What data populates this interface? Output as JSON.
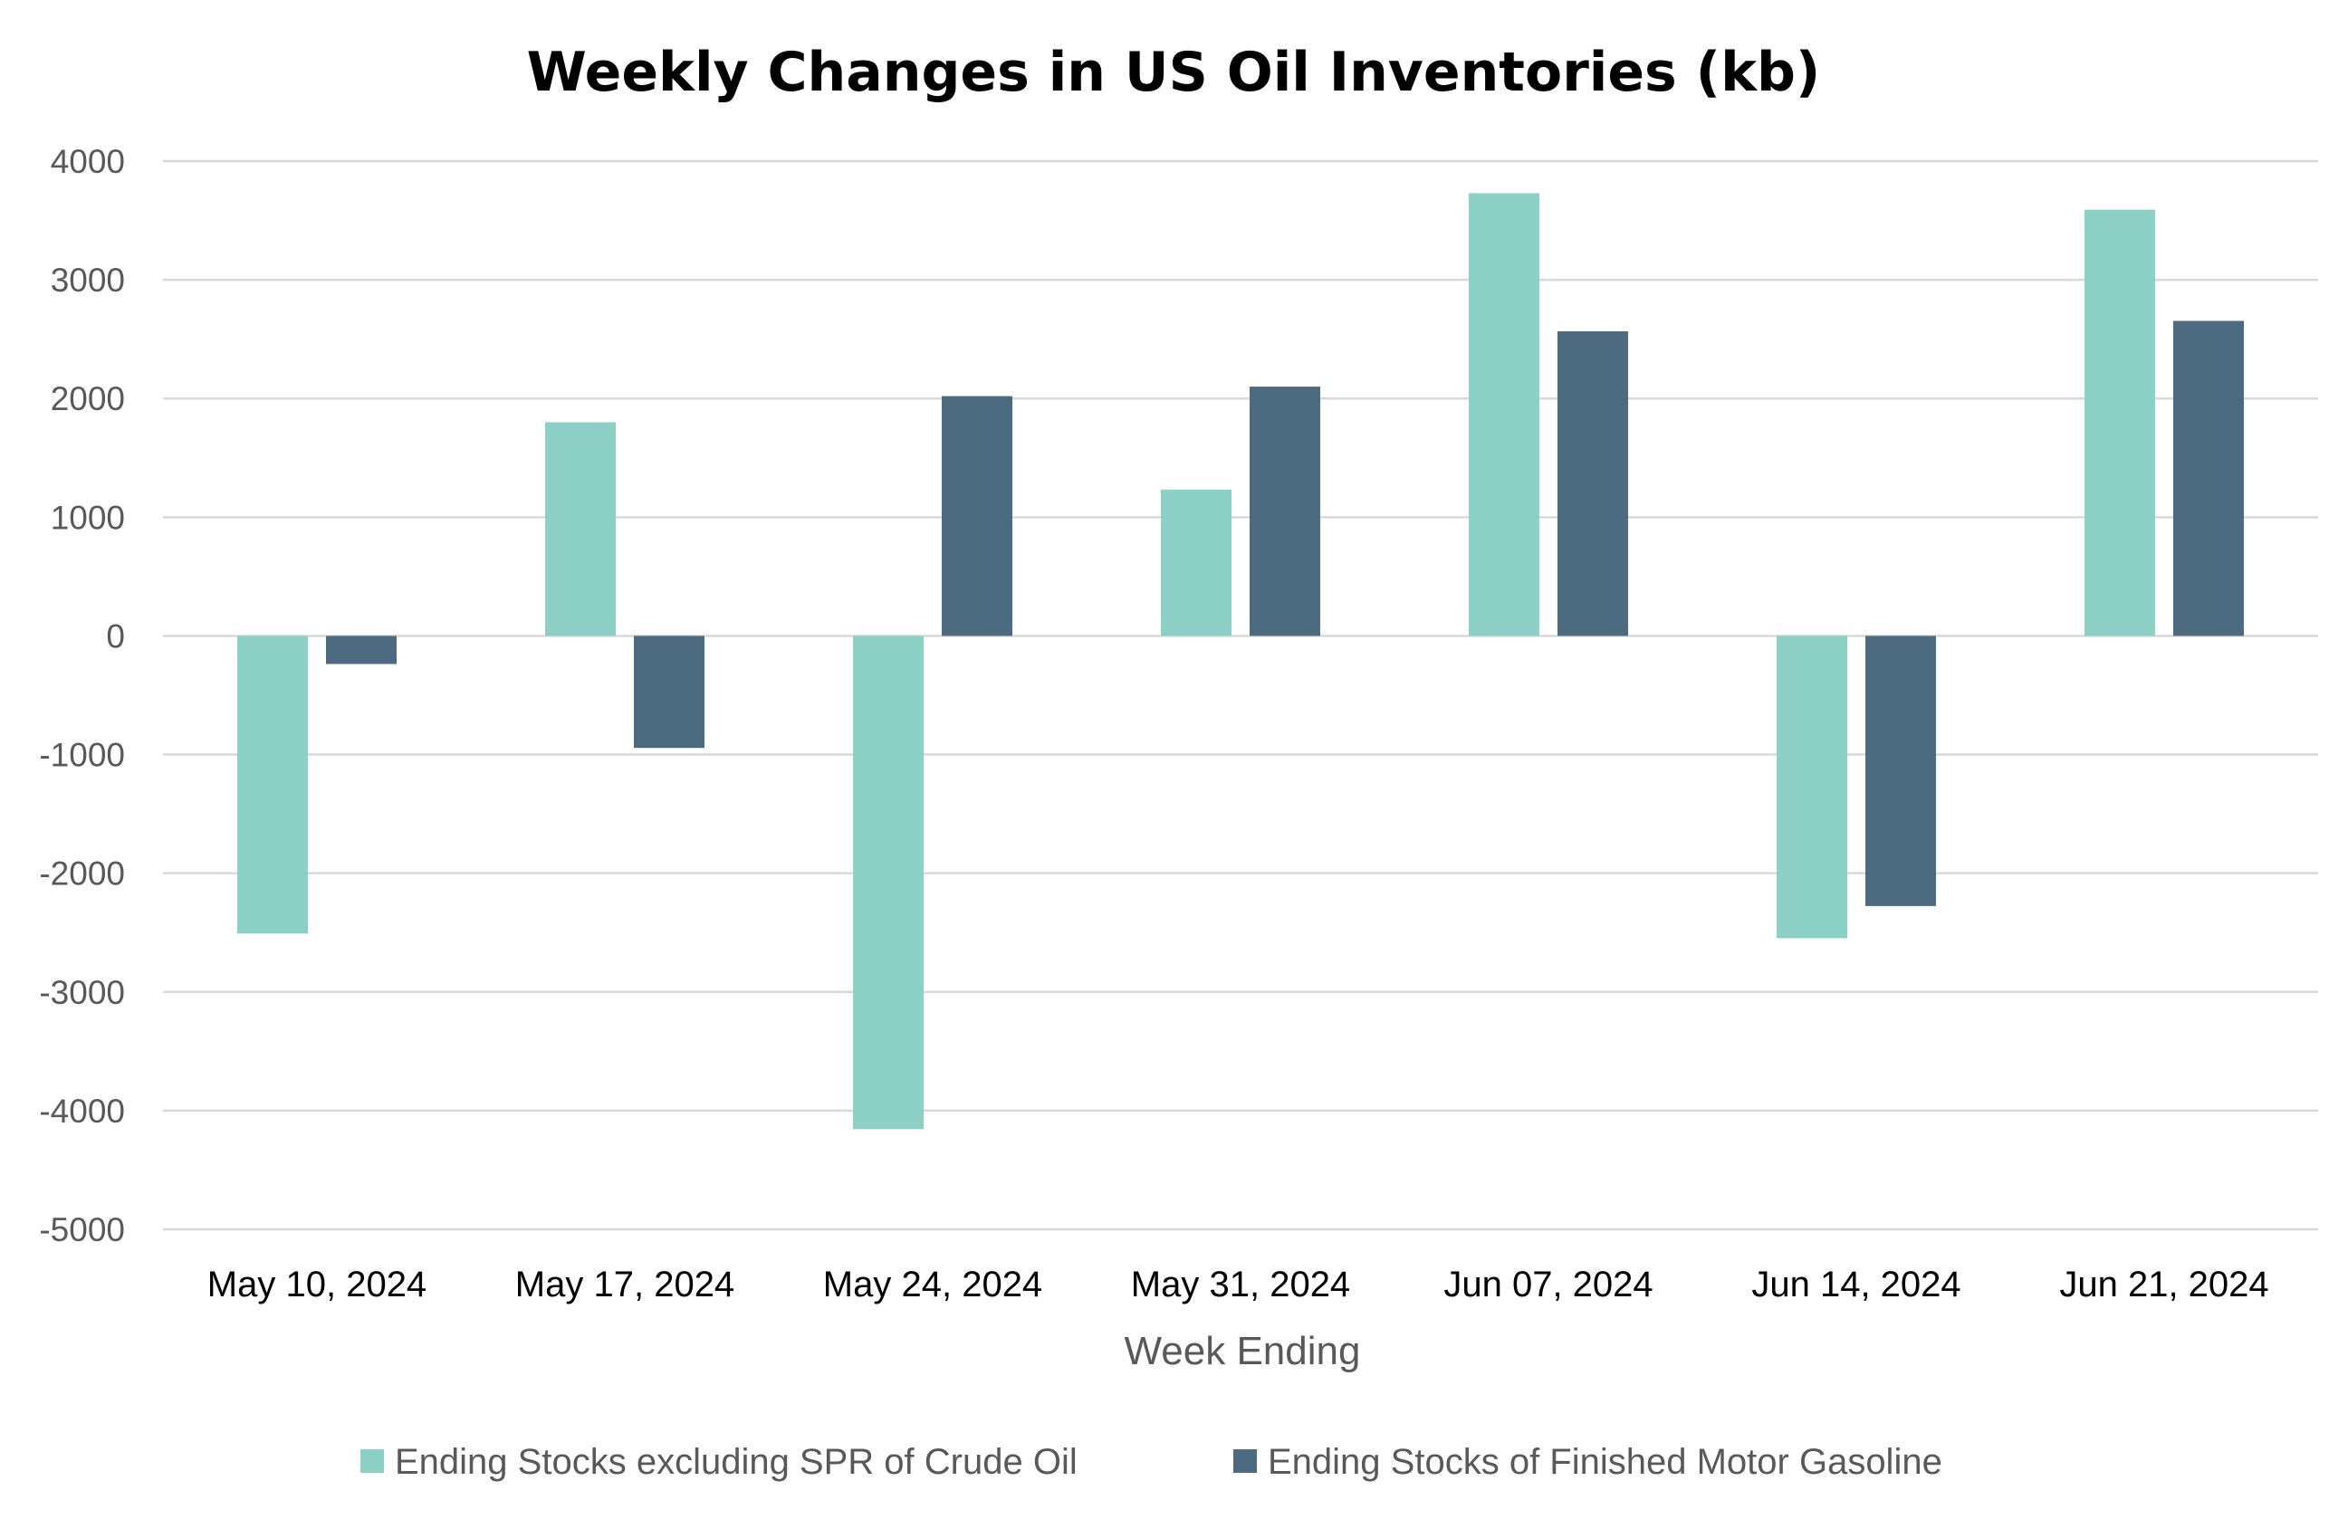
{
  "chart_data": {
    "type": "bar",
    "title": "Weekly Changes in US Oil Inventories (kb)",
    "xlabel": "Week Ending",
    "ylabel": "",
    "categories": [
      "May 10, 2024",
      "May 17, 2024",
      "May 24, 2024",
      "May 31, 2024",
      "Jun 07, 2024",
      "Jun 14, 2024",
      "Jun 21, 2024"
    ],
    "series": [
      {
        "name": "Ending Stocks excluding SPR of Crude Oil",
        "color": "#8dd0c6",
        "values": [
          -2508,
          1800,
          -4156,
          1233,
          3730,
          -2547,
          3591
        ]
      },
      {
        "name": "Ending Stocks of Finished Motor Gasoline",
        "color": "#4d6b80",
        "values": [
          -237,
          -944,
          2020,
          2100,
          2566,
          -2276,
          2654
        ]
      }
    ],
    "ylim": [
      -5000,
      4000
    ],
    "yticks": [
      4000,
      3000,
      2000,
      1000,
      0,
      -1000,
      -2000,
      -3000,
      -4000,
      -5000
    ],
    "grid": true,
    "legend_position": "bottom"
  }
}
